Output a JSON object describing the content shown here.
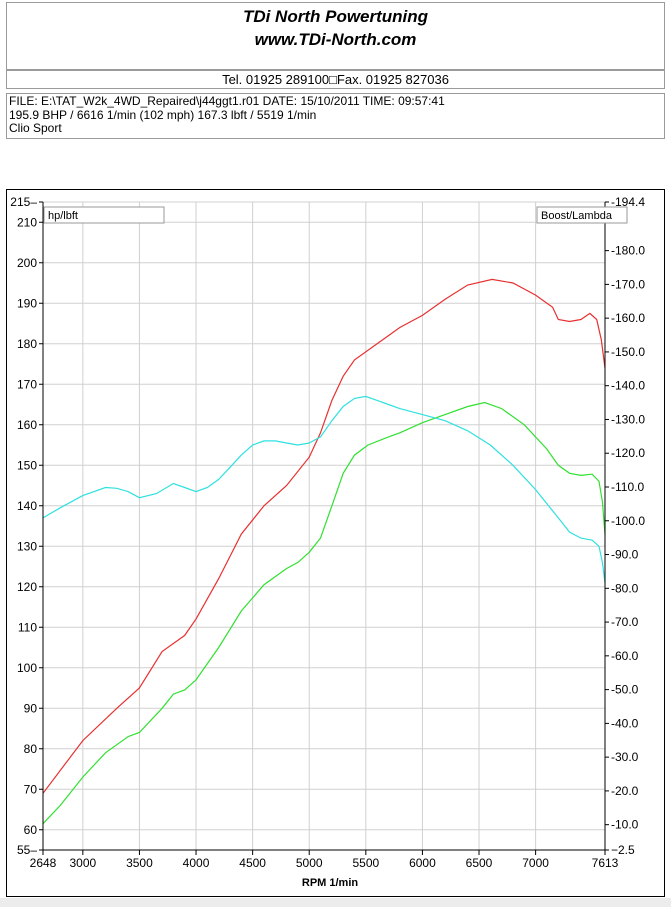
{
  "header": {
    "company": "TDi North Powertuning",
    "website": "www.TDi-North.com",
    "contact": "Tel. 01925 289100□Fax. 01925 827036"
  },
  "info": {
    "file_line": "FILE: E:\\TAT_W2k_4WD_Repaired\\j44ggt1.r01  DATE: 15/10/2011  TIME: 09:57:41",
    "result_line": "195.9 BHP / 6616 1/min (102 mph)    167.3 lbft / 5519 1/min",
    "car": "Clio Sport"
  },
  "chart_data": {
    "type": "line",
    "title": "",
    "xlabel": "RPM  1/min",
    "ylabel_left_box": "hp/lbft",
    "ylabel_right_box": "Boost/Lambda",
    "xlim": [
      2648,
      7613
    ],
    "ylim_left": [
      55,
      215
    ],
    "ylim_right": [
      -2.5,
      -194.4
    ],
    "x_ticks": [
      2648,
      3000,
      3500,
      4000,
      4500,
      5000,
      5500,
      6000,
      6500,
      7000,
      7613
    ],
    "y_left_ticks": [
      55,
      60,
      70,
      80,
      90,
      100,
      110,
      120,
      130,
      140,
      150,
      160,
      170,
      180,
      190,
      200,
      210,
      215
    ],
    "y_right_ticks": [
      -2.5,
      -10.0,
      -20.0,
      -30.0,
      -40.0,
      -50.0,
      -60.0,
      -70.0,
      -80.0,
      -90.0,
      -100.0,
      -110.0,
      -120.0,
      -130.0,
      -140.0,
      -150.0,
      -160.0,
      -170.0,
      -180.0,
      -194.4
    ],
    "y_right_tick_labels": [
      "−2.5",
      "-10.0",
      "-20.0",
      "-30.0",
      "-40.0",
      "-50.0",
      "-60.0",
      "-70.0",
      "-80.0",
      "-90.0",
      "-100.0",
      "-110.0",
      "-120.0",
      "-130.0",
      "-140.0",
      "-150.0",
      "-160.0",
      "-170.0",
      "-180.0",
      "-194.4"
    ],
    "grid": true,
    "series": [
      {
        "color": "#e83030",
        "points": [
          [
            2648,
            69.0
          ],
          [
            3000,
            82.0
          ],
          [
            3300,
            90.0
          ],
          [
            3500,
            95.0
          ],
          [
            3700,
            104.0
          ],
          [
            3900,
            108.0
          ],
          [
            4000,
            112.0
          ],
          [
            4200,
            122.0
          ],
          [
            4400,
            133.0
          ],
          [
            4600,
            140.0
          ],
          [
            4800,
            145.0
          ],
          [
            5000,
            152.0
          ],
          [
            5100,
            158.0
          ],
          [
            5200,
            166.0
          ],
          [
            5300,
            172.0
          ],
          [
            5400,
            176.0
          ],
          [
            5600,
            180.0
          ],
          [
            5800,
            184.0
          ],
          [
            6000,
            187.0
          ],
          [
            6200,
            191.0
          ],
          [
            6400,
            194.5
          ],
          [
            6616,
            195.9
          ],
          [
            6800,
            195.0
          ],
          [
            7000,
            192.0
          ],
          [
            7150,
            189.0
          ],
          [
            7200,
            186.0
          ],
          [
            7300,
            185.5
          ],
          [
            7400,
            186.0
          ],
          [
            7480,
            187.5
          ],
          [
            7540,
            186.0
          ],
          [
            7580,
            181.0
          ],
          [
            7613,
            174.0
          ]
        ]
      },
      {
        "color": "#30e030",
        "points": [
          [
            2648,
            61.5
          ],
          [
            2800,
            66.0
          ],
          [
            3000,
            73.0
          ],
          [
            3200,
            79.0
          ],
          [
            3400,
            83.0
          ],
          [
            3500,
            84.0
          ],
          [
            3700,
            90.0
          ],
          [
            3800,
            93.5
          ],
          [
            3900,
            94.5
          ],
          [
            4000,
            97.0
          ],
          [
            4200,
            105.0
          ],
          [
            4400,
            114.0
          ],
          [
            4600,
            120.5
          ],
          [
            4800,
            124.5
          ],
          [
            4900,
            126.0
          ],
          [
            5000,
            128.5
          ],
          [
            5100,
            132.0
          ],
          [
            5200,
            140.0
          ],
          [
            5300,
            148.0
          ],
          [
            5400,
            152.5
          ],
          [
            5519,
            155.0
          ],
          [
            5700,
            157.0
          ],
          [
            5800,
            158.0
          ],
          [
            6000,
            160.5
          ],
          [
            6200,
            162.5
          ],
          [
            6400,
            164.5
          ],
          [
            6550,
            165.5
          ],
          [
            6700,
            164.0
          ],
          [
            6900,
            160.0
          ],
          [
            7100,
            154.0
          ],
          [
            7200,
            150.0
          ],
          [
            7300,
            148.0
          ],
          [
            7400,
            147.5
          ],
          [
            7500,
            147.8
          ],
          [
            7560,
            146.0
          ],
          [
            7590,
            141.0
          ],
          [
            7613,
            133.0
          ]
        ]
      },
      {
        "color": "#30e0e0",
        "points": [
          [
            2648,
            137.0
          ],
          [
            2800,
            139.5
          ],
          [
            3000,
            142.5
          ],
          [
            3200,
            144.5
          ],
          [
            3300,
            144.3
          ],
          [
            3400,
            143.5
          ],
          [
            3500,
            142.0
          ],
          [
            3650,
            143.0
          ],
          [
            3800,
            145.5
          ],
          [
            3900,
            144.5
          ],
          [
            4000,
            143.5
          ],
          [
            4100,
            144.5
          ],
          [
            4200,
            146.5
          ],
          [
            4300,
            149.5
          ],
          [
            4400,
            152.5
          ],
          [
            4500,
            155.0
          ],
          [
            4600,
            156.0
          ],
          [
            4700,
            156.0
          ],
          [
            4800,
            155.5
          ],
          [
            4900,
            155.0
          ],
          [
            5000,
            155.5
          ],
          [
            5100,
            157.0
          ],
          [
            5200,
            161.0
          ],
          [
            5300,
            164.5
          ],
          [
            5400,
            166.5
          ],
          [
            5500,
            167.0
          ],
          [
            5600,
            166.0
          ],
          [
            5700,
            165.0
          ],
          [
            5800,
            164.0
          ],
          [
            6000,
            162.5
          ],
          [
            6200,
            161.0
          ],
          [
            6400,
            158.5
          ],
          [
            6600,
            155.0
          ],
          [
            6800,
            150.0
          ],
          [
            7000,
            144.0
          ],
          [
            7200,
            137.0
          ],
          [
            7300,
            133.5
          ],
          [
            7400,
            132.0
          ],
          [
            7500,
            131.5
          ],
          [
            7560,
            130.0
          ],
          [
            7590,
            126.0
          ],
          [
            7613,
            121.0
          ]
        ]
      }
    ]
  }
}
